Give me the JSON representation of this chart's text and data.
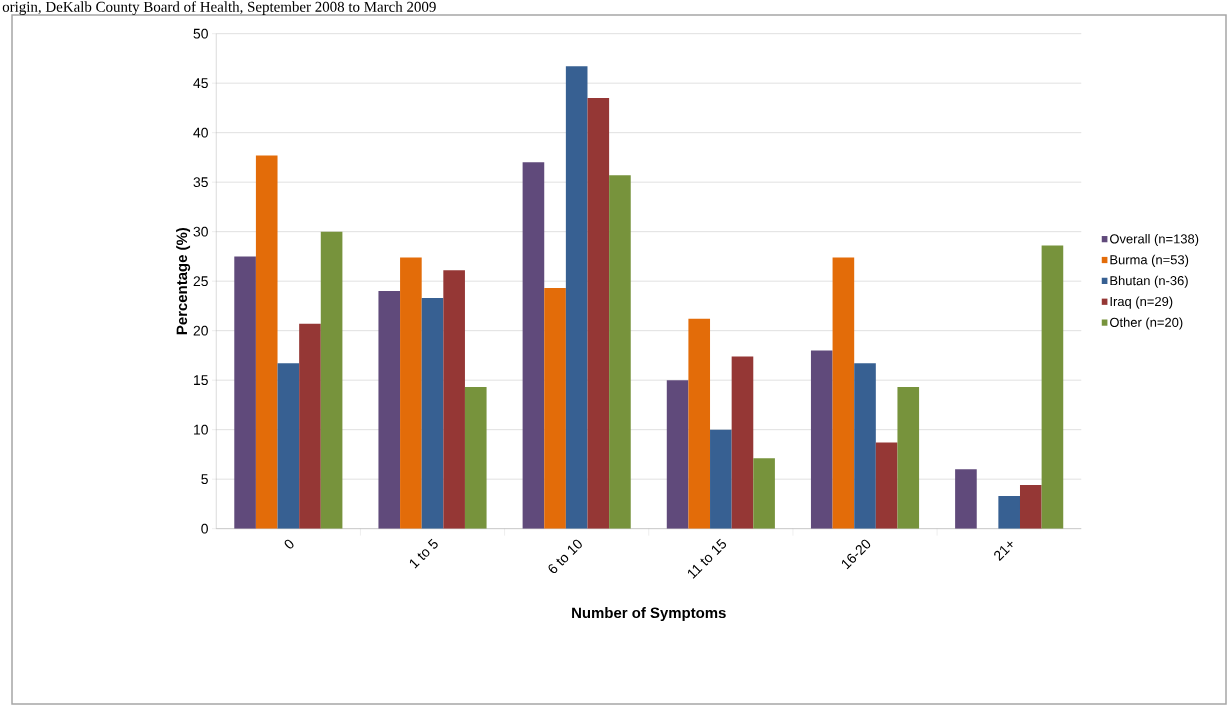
{
  "chart_data": {
    "type": "bar",
    "title": "origin, DeKalb County Board of Health, September 2008 to March 2009",
    "xlabel": "Number of Symptoms",
    "ylabel": "Percentage (%)",
    "categories": [
      "0",
      "1 to 5",
      "6 to 10",
      "11 to 15",
      "16-20",
      "21+"
    ],
    "series": [
      {
        "name": "Overall (n=138)",
        "color": "#604a7b",
        "values": [
          27.5,
          24.0,
          37.0,
          15.0,
          18.0,
          6.0
        ]
      },
      {
        "name": "Burma (n=53)",
        "color": "#e36c09",
        "values": [
          37.7,
          27.4,
          24.3,
          21.2,
          27.4,
          0
        ]
      },
      {
        "name": "Bhutan (n-36)",
        "color": "#376092",
        "values": [
          16.7,
          23.3,
          46.7,
          10.0,
          16.7,
          3.3
        ]
      },
      {
        "name": "Iraq (n=29)",
        "color": "#953735",
        "values": [
          20.7,
          26.1,
          43.5,
          17.4,
          8.7,
          4.4
        ]
      },
      {
        "name": "Other (n=20)",
        "color": "#77933c",
        "values": [
          30.0,
          14.3,
          35.7,
          7.1,
          14.3,
          28.6
        ]
      }
    ],
    "ylim": [
      0,
      50
    ],
    "yticks": [
      0,
      5,
      10,
      15,
      20,
      25,
      30,
      35,
      40,
      45,
      50
    ],
    "grid": "y",
    "legend": "right"
  }
}
